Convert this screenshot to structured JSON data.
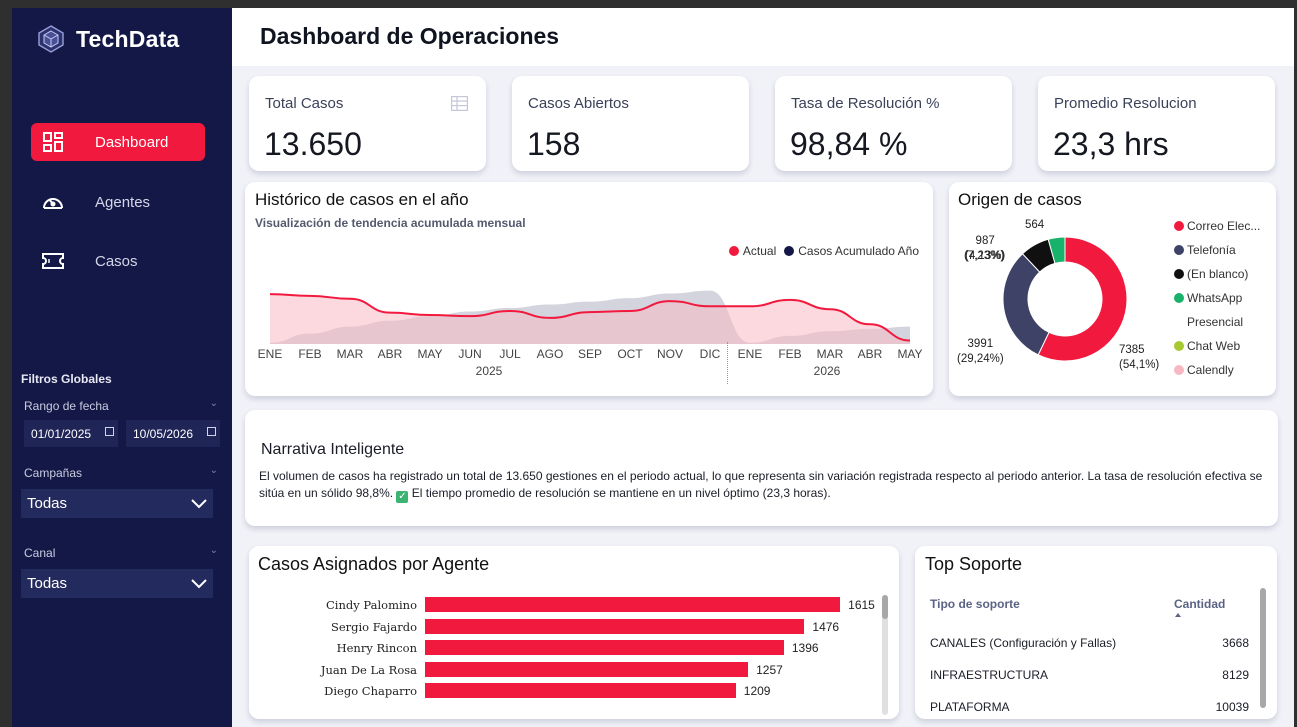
{
  "app": {
    "brand": "TechData",
    "page_title": "Dashboard de Operaciones"
  },
  "nav": [
    {
      "label": "Dashboard",
      "icon": "dashboard-icon",
      "active": true
    },
    {
      "label": "Agentes",
      "icon": "gauge-icon",
      "active": false
    },
    {
      "label": "Casos",
      "icon": "ticket-icon",
      "active": false
    }
  ],
  "filters": {
    "title": "Filtros Globales",
    "date_label": "Rango de fecha",
    "date_from": "01/01/2025",
    "date_to": "10/05/2026",
    "campaign_label": "Campañas",
    "campaign_value": "Todas",
    "channel_label": "Canal",
    "channel_value": "Todas"
  },
  "kpis": [
    {
      "title": "Total Casos",
      "value": "13.650"
    },
    {
      "title": "Casos Abiertos",
      "value": "158"
    },
    {
      "title": "Tasa de Resolución %",
      "value": "98,84 %"
    },
    {
      "title": "Promedio Resolucion",
      "value": "23,3 hrs"
    }
  ],
  "history": {
    "title": "Histórico de casos en el año",
    "subtitle": "Visualización de tendencia acumulada mensual",
    "legend": [
      {
        "name": "Actual",
        "color": "#f2193e"
      },
      {
        "name": "Casos Acumulado Año",
        "color": "#141846"
      }
    ],
    "months": [
      "ENE",
      "FEB",
      "MAR",
      "ABR",
      "MAY",
      "JUN",
      "JUL",
      "AGO",
      "SEP",
      "OCT",
      "NOV",
      "DIC",
      "ENE",
      "FEB",
      "MAR",
      "ABR",
      "MAY"
    ],
    "years": [
      "2025",
      "2026"
    ]
  },
  "chart_data": [
    {
      "type": "area",
      "title": "Histórico de casos en el año",
      "categories": [
        "ENE 2025",
        "FEB 2025",
        "MAR 2025",
        "ABR 2025",
        "MAY 2025",
        "JUN 2025",
        "JUL 2025",
        "AGO 2025",
        "SEP 2025",
        "OCT 2025",
        "NOV 2025",
        "DIC 2025",
        "ENE 2026",
        "FEB 2026",
        "MAR 2026",
        "ABR 2026",
        "MAY 2026"
      ],
      "series": [
        {
          "name": "Actual",
          "color": "#f2193e",
          "values": [
            0.86,
            0.83,
            0.78,
            0.54,
            0.5,
            0.48,
            0.57,
            0.45,
            0.55,
            0.57,
            0.74,
            0.65,
            0.65,
            0.76,
            0.6,
            0.34,
            0.06
          ]
        },
        {
          "name": "Casos Acumulado Año",
          "color": "#141846",
          "values": [
            0.02,
            0.18,
            0.3,
            0.4,
            0.48,
            0.56,
            0.62,
            0.68,
            0.73,
            0.79,
            0.87,
            0.92,
            0.02,
            0.14,
            0.22,
            0.26,
            0.3
          ]
        }
      ]
    },
    {
      "type": "pie",
      "title": "Origen de casos",
      "labels": [
        "Correo Elec...",
        "Telefonía",
        "(En blanco)",
        "WhatsApp",
        "Presencial",
        "Chat Web",
        "Calendly"
      ],
      "values": [
        7385,
        3991,
        987,
        564,
        0,
        0,
        0
      ],
      "colors": [
        "#f2193e",
        "#3e4266",
        "#101010",
        "#18b26a",
        "#ffffff",
        "#a8c832",
        "#f7b8c4"
      ],
      "slice_labels": [
        {
          "value": "7385",
          "pct": "(54,1%)"
        },
        {
          "value": "3991",
          "pct": "(29,24%)"
        },
        {
          "value": "987",
          "pct": "(7,23%)"
        },
        {
          "value": "564",
          "pct": "(4,13%)"
        }
      ]
    },
    {
      "type": "bar",
      "title": "Casos Asignados por Agente",
      "categories": [
        "Cindy Palomino",
        "Sergio Fajardo",
        "Henry Rincon",
        "Juan De La Rosa",
        "Diego Chaparro"
      ],
      "values": [
        1615,
        1476,
        1396,
        1257,
        1209
      ]
    }
  ],
  "origin": {
    "title": "Origen de casos"
  },
  "narrative": {
    "title": "Narrativa Inteligente",
    "text_1": "El volumen de casos ha registrado un total de 13.650 gestiones en el periodo actual, lo que representa sin variación registrada respecto al periodo anterior. La tasa de resolución efectiva se sitúa en un sólido 98,8%.",
    "text_2": "El tiempo promedio de resolución se mantiene en un nivel óptimo (23,3 horas)."
  },
  "agents": {
    "title": "Casos Asignados por Agente"
  },
  "support": {
    "title": "Top Soporte",
    "col_type": "Tipo de soporte",
    "col_qty": "Cantidad",
    "rows": [
      {
        "type": "CANALES (Configuración y Fallas)",
        "qty": "3668"
      },
      {
        "type": "INFRAESTRUCTURA",
        "qty": "8129"
      },
      {
        "type": "PLATAFORMA",
        "qty": "10039"
      }
    ]
  }
}
